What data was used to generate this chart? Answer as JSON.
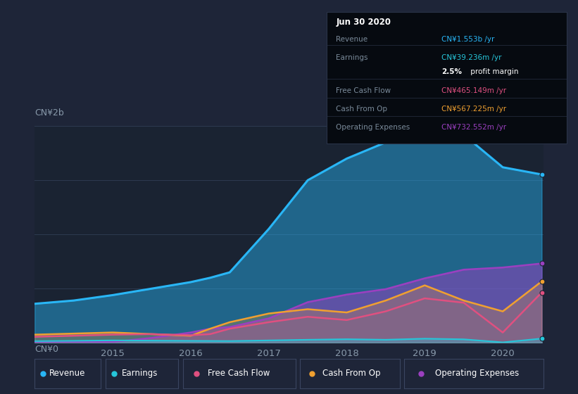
{
  "background_color": "#1e2538",
  "chart_bg": "#1a2332",
  "grid_color": "#2d3a50",
  "text_color": "#8899aa",
  "title_color": "#ffffff",
  "years": [
    2014.0,
    2014.5,
    2015.0,
    2015.5,
    2016.0,
    2016.25,
    2016.5,
    2017.0,
    2017.5,
    2018.0,
    2018.5,
    2019.0,
    2019.5,
    2020.0,
    2020.5
  ],
  "revenue": [
    360,
    390,
    440,
    500,
    560,
    600,
    650,
    1050,
    1500,
    1700,
    1850,
    1970,
    1920,
    1620,
    1553
  ],
  "earnings": [
    15,
    18,
    22,
    20,
    18,
    17,
    16,
    22,
    28,
    33,
    28,
    38,
    32,
    4,
    39
  ],
  "free_cash_flow": [
    55,
    65,
    75,
    80,
    70,
    80,
    130,
    190,
    240,
    210,
    290,
    410,
    370,
    95,
    465
  ],
  "cash_from_op": [
    75,
    85,
    95,
    80,
    65,
    130,
    190,
    270,
    310,
    280,
    390,
    530,
    390,
    290,
    567
  ],
  "operating_expenses": [
    8,
    8,
    8,
    45,
    95,
    130,
    145,
    225,
    375,
    445,
    495,
    595,
    675,
    695,
    732
  ],
  "revenue_color": "#29b6f6",
  "earnings_color": "#26c6da",
  "free_cash_flow_color": "#e05080",
  "cash_from_op_color": "#f0a030",
  "operating_expenses_color": "#9b40c0",
  "ylim": [
    0,
    2000
  ],
  "ylabel_top": "CN¥2b",
  "ylabel_bottom": "CN¥0",
  "info_box_title": "Jun 30 2020",
  "info_rows": [
    {
      "label": "Revenue",
      "value": "CN¥1.553b /yr",
      "value_color": "#29b6f6"
    },
    {
      "label": "Earnings",
      "value": "CN¥39.236m /yr",
      "value_color": "#26c6da"
    },
    {
      "label": "",
      "value": "2.5% profit margin",
      "value_color": "#ffffff"
    },
    {
      "label": "Free Cash Flow",
      "value": "CN¥465.149m /yr",
      "value_color": "#e05080"
    },
    {
      "label": "Cash From Op",
      "value": "CN¥567.225m /yr",
      "value_color": "#f0a030"
    },
    {
      "label": "Operating Expenses",
      "value": "CN¥732.552m /yr",
      "value_color": "#9b40c0"
    }
  ],
  "legend": [
    {
      "label": "Revenue",
      "color": "#29b6f6"
    },
    {
      "label": "Earnings",
      "color": "#26c6da"
    },
    {
      "label": "Free Cash Flow",
      "color": "#e05080"
    },
    {
      "label": "Cash From Op",
      "color": "#f0a030"
    },
    {
      "label": "Operating Expenses",
      "color": "#9b40c0"
    }
  ],
  "x_ticks": [
    2015,
    2016,
    2017,
    2018,
    2019,
    2020
  ],
  "figsize": [
    8.21,
    5.6
  ],
  "dpi": 100
}
